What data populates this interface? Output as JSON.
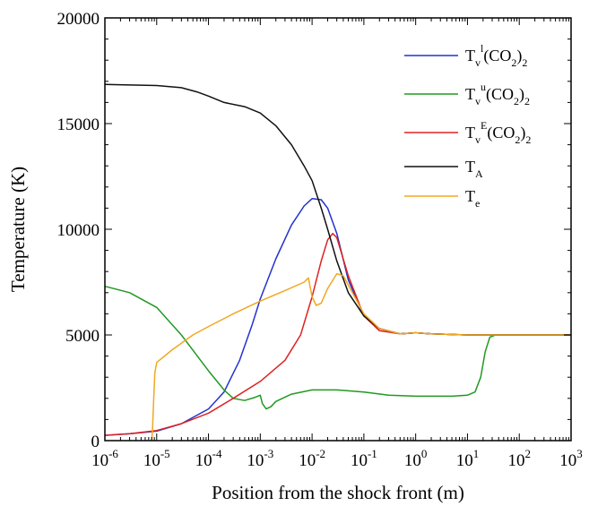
{
  "chart_data": {
    "type": "line",
    "x_scale": "log",
    "xlabel": "Position from the shock front (m)",
    "ylabel": "Temperature (K)",
    "xlim": [
      1e-06,
      1000
    ],
    "ylim": [
      0,
      20000
    ],
    "xticks": [
      {
        "value": 1e-06,
        "base": "10",
        "exp": "-6"
      },
      {
        "value": 1e-05,
        "base": "10",
        "exp": "-5"
      },
      {
        "value": 0.0001,
        "base": "10",
        "exp": "-4"
      },
      {
        "value": 0.001,
        "base": "10",
        "exp": "-3"
      },
      {
        "value": 0.01,
        "base": "10",
        "exp": "-2"
      },
      {
        "value": 0.1,
        "base": "10",
        "exp": "-1"
      },
      {
        "value": 1,
        "base": "10",
        "exp": "0"
      },
      {
        "value": 10,
        "base": "10",
        "exp": "1"
      },
      {
        "value": 100,
        "base": "10",
        "exp": "2"
      },
      {
        "value": 1000,
        "base": "10",
        "exp": "3"
      }
    ],
    "yticks": [
      {
        "value": 0,
        "label": "0"
      },
      {
        "value": 5000,
        "label": "5000"
      },
      {
        "value": 10000,
        "label": "10000"
      },
      {
        "value": 15000,
        "label": "15000"
      },
      {
        "value": 20000,
        "label": "20000"
      }
    ],
    "grid": false,
    "legend_position": "top-right",
    "series": [
      {
        "name": "Tv l (CO2)2",
        "legend": {
          "base": "T",
          "sub": "v",
          "sup": "l",
          "mid": "(CO",
          "sub2": "2",
          "end": ")",
          "sub3": "2"
        },
        "color": "#2233cc",
        "points": [
          [
            1e-06,
            250
          ],
          [
            3e-06,
            320
          ],
          [
            1e-05,
            450
          ],
          [
            3e-05,
            800
          ],
          [
            0.0001,
            1500
          ],
          [
            0.0002,
            2300
          ],
          [
            0.0004,
            3800
          ],
          [
            0.0007,
            5500
          ],
          [
            0.001,
            6700
          ],
          [
            0.002,
            8600
          ],
          [
            0.004,
            10200
          ],
          [
            0.007,
            11100
          ],
          [
            0.01,
            11450
          ],
          [
            0.015,
            11400
          ],
          [
            0.02,
            11000
          ],
          [
            0.03,
            9800
          ],
          [
            0.05,
            7600
          ],
          [
            0.1,
            5900
          ],
          [
            0.2,
            5300
          ],
          [
            0.5,
            5050
          ],
          [
            1,
            5100
          ],
          [
            2,
            5050
          ],
          [
            10,
            5000
          ],
          [
            100,
            5000
          ],
          [
            1000,
            5000
          ]
        ]
      },
      {
        "name": "Tv u (CO2)2",
        "legend": {
          "base": "T",
          "sub": "v",
          "sup": "u",
          "mid": "(CO",
          "sub2": "2",
          "end": ")",
          "sub3": "2"
        },
        "color": "#229922",
        "points": [
          [
            1e-06,
            7300
          ],
          [
            3e-06,
            7000
          ],
          [
            1e-05,
            6300
          ],
          [
            3e-05,
            5000
          ],
          [
            0.0001,
            3300
          ],
          [
            0.0002,
            2400
          ],
          [
            0.0003,
            2000
          ],
          [
            0.0005,
            1900
          ],
          [
            0.0008,
            2050
          ],
          [
            0.001,
            2150
          ],
          [
            0.0011,
            1750
          ],
          [
            0.0013,
            1500
          ],
          [
            0.0016,
            1600
          ],
          [
            0.002,
            1850
          ],
          [
            0.004,
            2200
          ],
          [
            0.01,
            2400
          ],
          [
            0.03,
            2400
          ],
          [
            0.1,
            2300
          ],
          [
            0.3,
            2150
          ],
          [
            1,
            2100
          ],
          [
            5,
            2100
          ],
          [
            10,
            2150
          ],
          [
            14,
            2300
          ],
          [
            18,
            3000
          ],
          [
            22,
            4200
          ],
          [
            27,
            4900
          ],
          [
            35,
            5000
          ],
          [
            100,
            5000
          ],
          [
            1000,
            5000
          ]
        ]
      },
      {
        "name": "Tv E (CO2)2",
        "legend": {
          "base": "T",
          "sub": "v",
          "sup": "E",
          "mid": "(CO",
          "sub2": "2",
          "end": ")",
          "sub3": "2"
        },
        "color": "#dd2222",
        "points": [
          [
            1e-06,
            250
          ],
          [
            3e-06,
            330
          ],
          [
            1e-05,
            480
          ],
          [
            3e-05,
            800
          ],
          [
            0.0001,
            1300
          ],
          [
            0.0003,
            2000
          ],
          [
            0.001,
            2800
          ],
          [
            0.003,
            3800
          ],
          [
            0.006,
            5000
          ],
          [
            0.01,
            6800
          ],
          [
            0.015,
            8500
          ],
          [
            0.02,
            9500
          ],
          [
            0.025,
            9800
          ],
          [
            0.03,
            9600
          ],
          [
            0.05,
            7800
          ],
          [
            0.1,
            5900
          ],
          [
            0.2,
            5200
          ],
          [
            0.5,
            5050
          ],
          [
            1,
            5100
          ],
          [
            2,
            5050
          ],
          [
            10,
            5000
          ],
          [
            100,
            5000
          ],
          [
            1000,
            5000
          ]
        ]
      },
      {
        "name": "TA",
        "legend": {
          "base": "T",
          "sub": "A",
          "sup": "",
          "mid": "",
          "sub2": "",
          "end": "",
          "sub3": ""
        },
        "color": "#111111",
        "points": [
          [
            1e-06,
            16850
          ],
          [
            1e-05,
            16800
          ],
          [
            3e-05,
            16700
          ],
          [
            6e-05,
            16500
          ],
          [
            0.0001,
            16300
          ],
          [
            0.0002,
            16000
          ],
          [
            0.0005,
            15800
          ],
          [
            0.001,
            15500
          ],
          [
            0.002,
            14900
          ],
          [
            0.004,
            14000
          ],
          [
            0.007,
            13000
          ],
          [
            0.01,
            12300
          ],
          [
            0.015,
            11000
          ],
          [
            0.02,
            10000
          ],
          [
            0.03,
            8500
          ],
          [
            0.05,
            7000
          ],
          [
            0.1,
            5900
          ],
          [
            0.2,
            5300
          ],
          [
            0.5,
            5050
          ],
          [
            1,
            5100
          ],
          [
            2,
            5050
          ],
          [
            10,
            5000
          ],
          [
            100,
            5000
          ],
          [
            1000,
            5000
          ]
        ]
      },
      {
        "name": "Te",
        "legend": {
          "base": "T",
          "sub": "e",
          "sup": "",
          "mid": "",
          "sub2": "",
          "end": "",
          "sub3": ""
        },
        "color": "#f0a820",
        "points": [
          [
            8e-06,
            0
          ],
          [
            8.3e-06,
            500
          ],
          [
            8.7e-06,
            1800
          ],
          [
            9.2e-06,
            3200
          ],
          [
            1e-05,
            3700
          ],
          [
            2e-05,
            4300
          ],
          [
            5e-05,
            5000
          ],
          [
            0.0001,
            5400
          ],
          [
            0.0003,
            6000
          ],
          [
            0.001,
            6600
          ],
          [
            0.003,
            7100
          ],
          [
            0.007,
            7500
          ],
          [
            0.0085,
            7700
          ],
          [
            0.01,
            6800
          ],
          [
            0.012,
            6400
          ],
          [
            0.015,
            6500
          ],
          [
            0.02,
            7200
          ],
          [
            0.03,
            7900
          ],
          [
            0.04,
            7800
          ],
          [
            0.06,
            7000
          ],
          [
            0.1,
            6000
          ],
          [
            0.2,
            5300
          ],
          [
            0.5,
            5050
          ],
          [
            1,
            5100
          ],
          [
            2,
            5050
          ],
          [
            10,
            5000
          ],
          [
            100,
            5000
          ],
          [
            1000,
            5000
          ]
        ]
      }
    ]
  }
}
